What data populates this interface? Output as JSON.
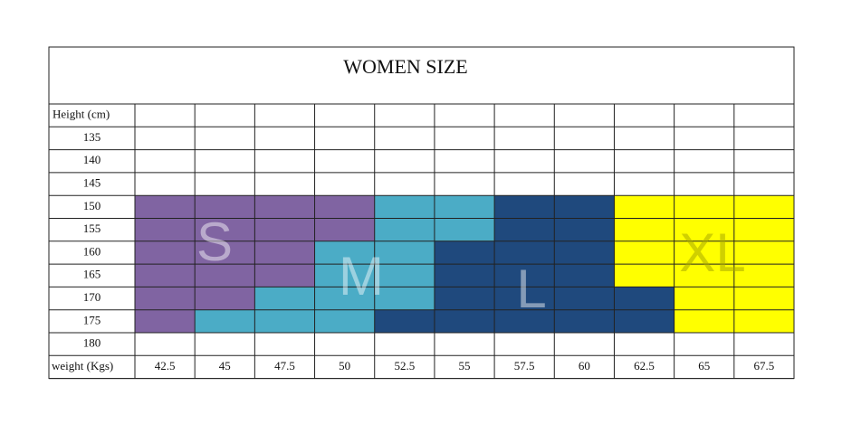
{
  "table": {
    "title": "WOMEN SIZE",
    "height_header": "Height (cm)",
    "heights": [
      135,
      140,
      145,
      150,
      155,
      160,
      165,
      170,
      175,
      180
    ],
    "weight_header": "weight (Kgs)",
    "weights": [
      42.5,
      45,
      47.5,
      50,
      52.5,
      55,
      57.5,
      60,
      62.5,
      65,
      67.5
    ],
    "sizes": [
      {
        "label": "S",
        "color": "#8064a2"
      },
      {
        "label": "M",
        "color": "#4bacc6"
      },
      {
        "label": "L",
        "color": "#1f497d"
      },
      {
        "label": "XL",
        "color": "#ffff00"
      }
    ],
    "grid": [
      [
        null,
        null,
        null,
        null,
        null,
        null,
        null,
        null,
        null,
        null,
        null
      ],
      [
        null,
        null,
        null,
        null,
        null,
        null,
        null,
        null,
        null,
        null,
        null
      ],
      [
        null,
        null,
        null,
        null,
        null,
        null,
        null,
        null,
        null,
        null,
        null
      ],
      [
        "S",
        "S",
        "S",
        "S",
        "M",
        "M",
        "L",
        "L",
        "XL",
        "XL",
        "XL"
      ],
      [
        "S",
        "S",
        "S",
        "S",
        "M",
        "M",
        "L",
        "L",
        "XL",
        "XL",
        "XL"
      ],
      [
        "S",
        "S",
        "S",
        "M",
        "M",
        "L",
        "L",
        "L",
        "XL",
        "XL",
        "XL"
      ],
      [
        "S",
        "S",
        "S",
        "M",
        "M",
        "L",
        "L",
        "L",
        "XL",
        "XL",
        "XL"
      ],
      [
        "S",
        "S",
        "M",
        "M",
        "M",
        "L",
        "L",
        "L",
        "L",
        "XL",
        "XL"
      ],
      [
        "S",
        "M",
        "M",
        "M",
        "L",
        "L",
        "L",
        "L",
        "L",
        "XL",
        "XL"
      ],
      [
        null,
        null,
        null,
        null,
        null,
        null,
        null,
        null,
        null,
        null,
        null
      ]
    ]
  }
}
